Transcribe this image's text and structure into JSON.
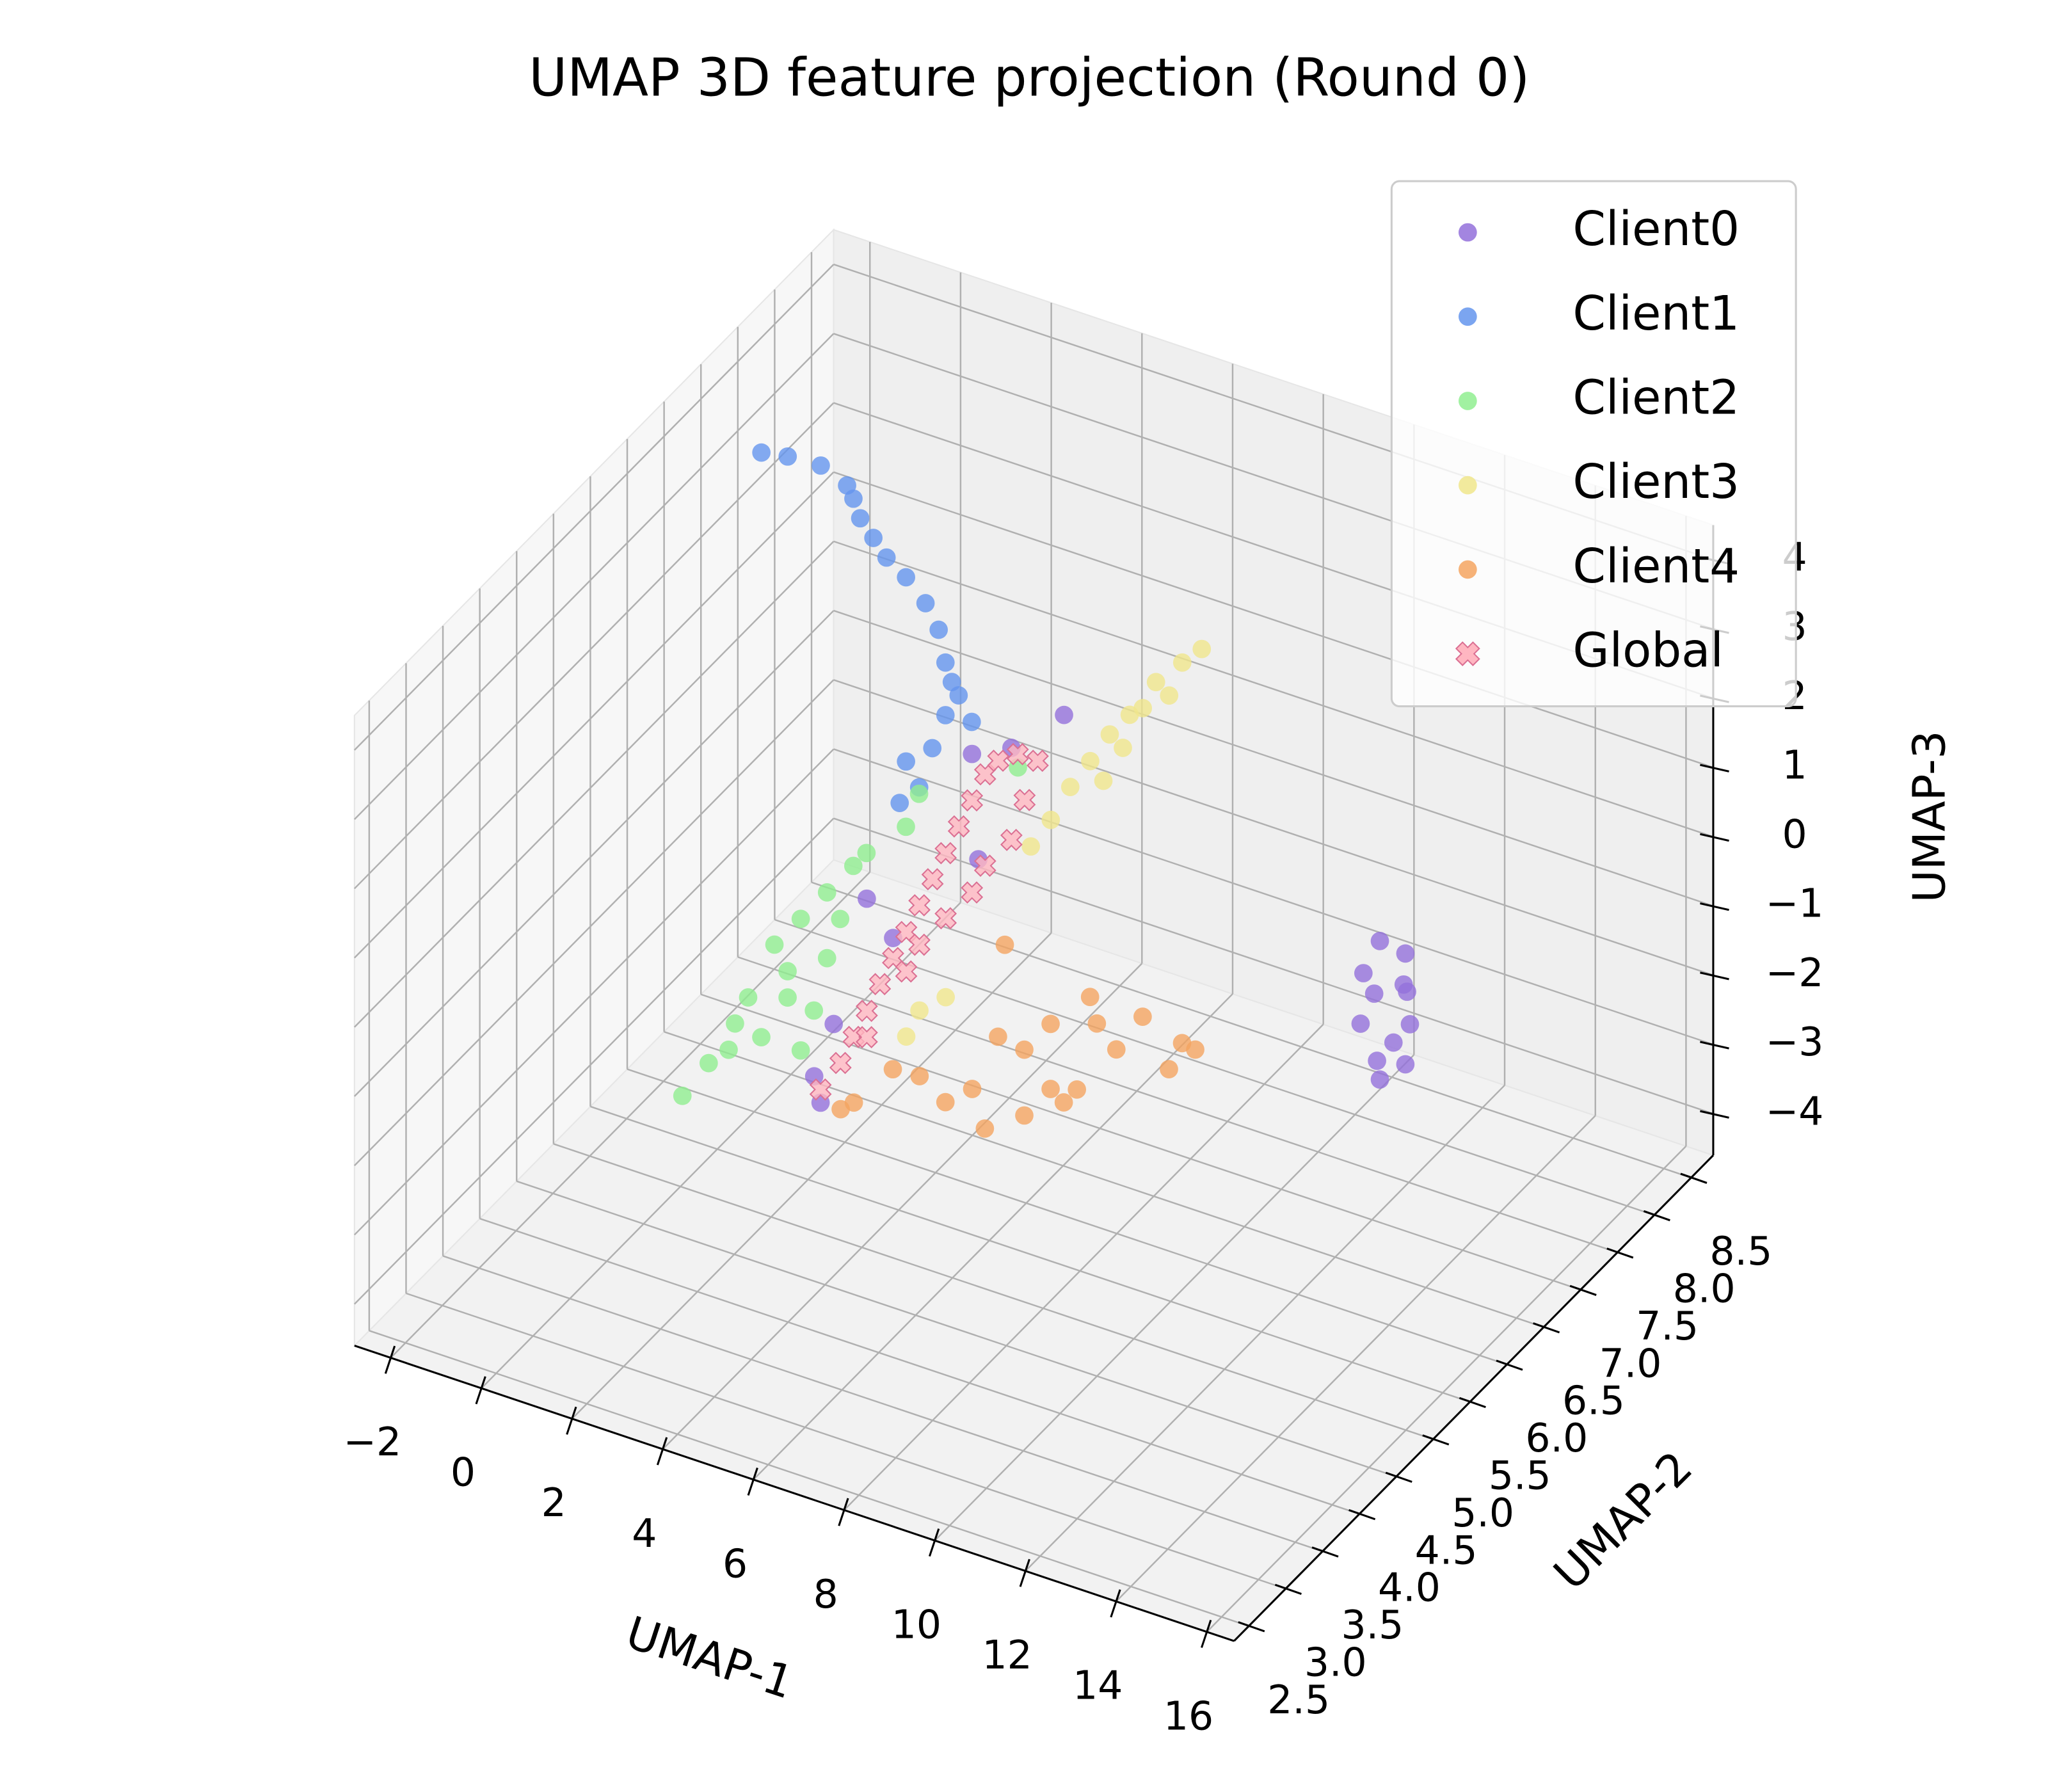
{
  "chart_data": {
    "type": "scatter3d",
    "title": "UMAP 3D feature projection (Round 0)",
    "xlabel": "UMAP-1",
    "ylabel": "UMAP-2",
    "zlabel": "UMAP-3",
    "xlim": [
      -2.8,
      16.6
    ],
    "ylim": [
      2.3,
      8.8
    ],
    "zlim": [
      -4.6,
      4.5
    ],
    "xticks": [
      {
        "value": -2,
        "label": "−2"
      },
      0,
      2,
      4,
      6,
      8,
      10,
      12,
      14,
      16
    ],
    "yticks": [
      2.5,
      {
        "value": 3,
        "label": "3.0"
      },
      3.5,
      {
        "value": 4,
        "label": "4.0"
      },
      4.5,
      {
        "value": 5,
        "label": "5.0"
      },
      5.5,
      {
        "value": 6,
        "label": "6.0"
      },
      6.5,
      {
        "value": 7,
        "label": "7.0"
      },
      7.5,
      {
        "value": 8,
        "label": "8.0"
      },
      8.5
    ],
    "zticks": [
      {
        "value": -4,
        "label": "−4"
      },
      {
        "value": -3,
        "label": "−3"
      },
      {
        "value": -2,
        "label": "−2"
      },
      {
        "value": -1,
        "label": "−1"
      },
      0,
      1,
      2,
      3,
      4
    ],
    "grid": true,
    "legend": "upper right",
    "series": [
      {
        "name": "Client0",
        "color": "#9370db",
        "marker": "o",
        "x": [
          13.8,
          14.2,
          13.6,
          14.4,
          14.0,
          13.7,
          14.3,
          14.1,
          13.9,
          14.2,
          13.8,
          14.0,
          6.43,
          7.3,
          6.57,
          4.11,
          4.69,
          3.38,
          2.95,
          3.09,
          8.46
        ],
        "y": [
          6.0,
          6.1,
          5.9,
          6.0,
          6.2,
          5.8,
          6.1,
          6.0,
          5.9,
          6.1,
          6.0,
          5.8,
          5.0,
          5.0,
          5.0,
          5.0,
          5.0,
          5.0,
          5.0,
          5.0,
          5.0
        ],
        "z": [
          0.9,
          0.7,
          0.5,
          0.3,
          0.1,
          -0.1,
          -0.3,
          -0.5,
          -0.7,
          -0.9,
          -1.1,
          0.4,
          3.06,
          3.34,
          1.57,
          0.46,
          0.02,
          -1.51,
          -2.36,
          -2.71,
          4.07
        ]
      },
      {
        "name": "Client1",
        "color": "#6495ed",
        "marker": "o",
        "x": [
          -2.28,
          -1.7,
          -0.97,
          -0.39,
          -0.1,
          0.19,
          0.48,
          0.91,
          1.34,
          1.63,
          1.78,
          2.07,
          2.36,
          1.78,
          1.49,
          0.91,
          1.2,
          0.77,
          1.92,
          -0.25
        ],
        "y": [
          7.5,
          7.5,
          7.5,
          7.5,
          7.5,
          7.5,
          7.5,
          7.5,
          7.5,
          7.5,
          7.5,
          7.5,
          7.5,
          7.5,
          7.5,
          7.5,
          7.5,
          7.5,
          7.5,
          7.5
        ],
        "z": [
          2.8,
          2.87,
          2.9,
          2.74,
          2.33,
          2.11,
          1.89,
          1.7,
          1.42,
          1.1,
          0.66,
          0.25,
          -0.07,
          -0.1,
          -0.64,
          -0.96,
          -1.27,
          -1.59,
          0.41,
          2.58
        ]
      },
      {
        "name": "Client2",
        "color": "#90ee90",
        "marker": "o",
        "x": [
          -0.77,
          -0.19,
          0.39,
          0.97,
          1.55,
          1.26,
          1.84,
          2.42,
          3.0,
          3.29,
          1.55,
          2.13,
          0.68,
          2.71,
          4.16,
          4.45,
          6.63,
          1.84,
          0.25,
          2.42
        ],
        "y": [
          5.5,
          5.5,
          5.5,
          5.5,
          5.5,
          5.5,
          5.5,
          5.5,
          5.5,
          5.5,
          5.5,
          5.5,
          5.5,
          5.5,
          5.5,
          5.5,
          5.5,
          5.5,
          5.5,
          5.5
        ],
        "z": [
          -4.0,
          -3.4,
          -2.7,
          -2.77,
          -2.07,
          -1.37,
          -0.87,
          -0.36,
          0.15,
          0.4,
          -1.69,
          -2.13,
          -2.26,
          -0.68,
          0.97,
          1.51,
          2.37,
          -2.77,
          -3.11,
          -1.31
        ]
      },
      {
        "name": "Client3",
        "color": "#f0e68c",
        "marker": "o",
        "x": [
          6.62,
          6.19,
          5.61,
          5.03,
          4.59,
          4.16,
          3.72,
          3.29,
          2.85,
          5.32,
          5.9,
          4.45,
          4.88,
          5.27,
          5.85,
          4.98
        ],
        "y": [
          8.0,
          8.0,
          8.0,
          8.0,
          8.0,
          8.0,
          8.0,
          8.0,
          8.0,
          8.0,
          8.0,
          8.0,
          8.0,
          5.0,
          5.0,
          5.0
        ],
        "z": [
          1.38,
          1.09,
          0.68,
          0.08,
          -0.3,
          -0.78,
          -1.25,
          -1.82,
          -2.3,
          0.24,
          0.55,
          -1.0,
          -0.43,
          -0.9,
          -0.58,
          -1.34
        ]
      },
      {
        "name": "Client4",
        "color": "#f4a460",
        "marker": "o",
        "x": [
          5.45,
          6.9,
          8.06,
          9.21,
          9.79,
          10.66,
          11.82,
          12.98,
          12.4,
          11.24,
          10.37,
          9.21,
          8.34,
          7.47,
          6.31,
          8.63,
          8.78,
          5.16,
          10.08,
          12.69,
          10.81,
          9.79
        ],
        "y": [
          4.0,
          4.0,
          4.0,
          4.0,
          4.0,
          4.0,
          4.0,
          4.0,
          4.0,
          4.0,
          4.0,
          4.0,
          4.0,
          4.0,
          4.0,
          4.0,
          4.0,
          4.0,
          4.0,
          4.0,
          4.0,
          4.0
        ],
        "z": [
          -1.11,
          -0.41,
          -0.34,
          0.48,
          0.98,
          1.56,
          1.53,
          1.31,
          0.9,
          0.93,
          0.16,
          -0.47,
          -0.85,
          -0.66,
          -0.44,
          0.54,
          1.9,
          -1.27,
          -0.09,
          1.34,
          1.21,
          0.04
        ]
      },
      {
        "name": "Global",
        "color": "#ffb6c1",
        "marker": "X",
        "x": [
          3.09,
          3.53,
          3.82,
          4.11,
          4.4,
          4.69,
          4.98,
          5.27,
          5.56,
          5.85,
          6.14,
          6.43,
          6.72,
          7.01,
          7.44,
          7.88,
          7.3,
          6.72,
          5.85,
          4.98,
          4.11,
          5.27,
          6.43,
          7.59
        ],
        "y": [
          5.0,
          5.0,
          5.0,
          5.0,
          5.0,
          5.0,
          5.0,
          5.0,
          5.0,
          5.0,
          5.0,
          5.0,
          5.0,
          5.0,
          5.0,
          5.0,
          5.0,
          5.0,
          5.0,
          5.0,
          5.0,
          5.0,
          5.0,
          5.0
        ],
        "z": [
          -2.52,
          -2.04,
          -1.6,
          -1.16,
          -0.71,
          -0.27,
          0.17,
          0.62,
          1.06,
          1.5,
          1.95,
          2.39,
          2.83,
          3.09,
          3.28,
          3.28,
          2.01,
          1.51,
          0.56,
          -0.4,
          -1.54,
          0.05,
          1.06,
          2.65
        ]
      }
    ]
  }
}
